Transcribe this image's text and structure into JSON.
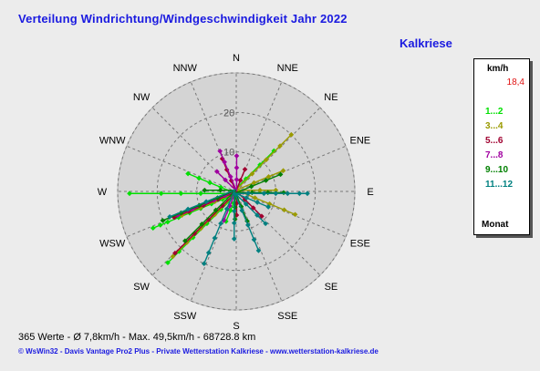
{
  "title": "Verteilung Windrichtung/Windgeschwindigkeit  Jahr 2022",
  "station": "Kalkriese",
  "legend": {
    "unit": "km/h",
    "max_value": "18,4",
    "classes": [
      {
        "label": "1...2",
        "color": "#00e000"
      },
      {
        "label": "3...4",
        "color": "#9a9a00"
      },
      {
        "label": "5...6",
        "color": "#a00030"
      },
      {
        "label": "7...8",
        "color": "#a000a0"
      },
      {
        "label": "9...10",
        "color": "#008000"
      },
      {
        "label": "11...12",
        "color": "#008080"
      }
    ],
    "footer": "Monat"
  },
  "stats_line": "365 Werte   -   Ø 7,8km/h  -  Max. 49,5km/h   -   68728.8 km",
  "credit_line": "© WsWin32  -  Davis Vantage Pro2 Plus  -  Private Wetterstation Kalkriese - www.wetterstation-kalkriese.de",
  "chart_data": {
    "type": "scatter",
    "subtype": "wind-rose",
    "directions": [
      "N",
      "NNE",
      "NE",
      "ENE",
      "E",
      "ESE",
      "SE",
      "SSE",
      "S",
      "SSW",
      "SW",
      "WSW",
      "W",
      "WNW",
      "NW",
      "NNW"
    ],
    "radial_ticks": [
      10,
      20
    ],
    "radial_max": 30,
    "grid": true,
    "legend_position": "right",
    "series": [
      {
        "name": "1...2",
        "color": "#00e000",
        "points": [
          {
            "dir": 247.5,
            "r": [
              4,
              7,
              10,
              13,
              16,
              19,
              21,
              23
            ]
          },
          {
            "dir": 292.5,
            "r": [
              4,
              7,
              10,
              13
            ]
          },
          {
            "dir": 270,
            "r": [
              9,
              14,
              19,
              27
            ]
          },
          {
            "dir": 225,
            "r": [
              6,
              11,
              16,
              21,
              25
            ]
          },
          {
            "dir": 202.5,
            "r": [
              3,
              5,
              8
            ]
          },
          {
            "dir": 45,
            "r": [
              4,
              9,
              14
            ]
          }
        ]
      },
      {
        "name": "3...4",
        "color": "#9a9a00",
        "points": [
          {
            "dir": 45,
            "r": [
              6,
              11,
              16,
              20
            ]
          },
          {
            "dir": 67.5,
            "r": [
              5,
              9,
              13
            ]
          },
          {
            "dir": 112.5,
            "r": [
              5,
              9,
              13,
              16
            ]
          },
          {
            "dir": 225,
            "r": [
              8,
              13,
              18,
              23
            ]
          },
          {
            "dir": 247.5,
            "r": [
              6,
              10,
              15
            ]
          },
          {
            "dir": 90,
            "r": [
              6,
              10
            ]
          }
        ]
      },
      {
        "name": "5...6",
        "color": "#a00030",
        "points": [
          {
            "dir": 225,
            "r": [
              5,
              10,
              15,
              22
            ]
          },
          {
            "dir": 247.5,
            "r": [
              5,
              9,
              13,
              17
            ]
          },
          {
            "dir": 180,
            "r": [
              3,
              6
            ]
          },
          {
            "dir": 337.5,
            "r": [
              3,
              6,
              9
            ]
          },
          {
            "dir": 135,
            "r": [
              3,
              6,
              9
            ]
          },
          {
            "dir": 22.5,
            "r": [
              3,
              6
            ]
          }
        ]
      },
      {
        "name": "7...8",
        "color": "#a000a0",
        "points": [
          {
            "dir": 337.5,
            "r": [
              4,
              8,
              11
            ]
          },
          {
            "dir": 0,
            "r": [
              3,
              6,
              9
            ]
          },
          {
            "dir": 247.5,
            "r": [
              3,
              6,
              12,
              16
            ]
          },
          {
            "dir": 315,
            "r": [
              4,
              7
            ]
          },
          {
            "dir": 202.5,
            "r": [
              4,
              8
            ]
          }
        ]
      },
      {
        "name": "9...10",
        "color": "#008000",
        "points": [
          {
            "dir": 67.5,
            "r": [
              4,
              8,
              12
            ]
          },
          {
            "dir": 90,
            "r": [
              4,
              8,
              12
            ]
          },
          {
            "dir": 247.5,
            "r": [
              5,
              10,
              15,
              20
            ]
          },
          {
            "dir": 225,
            "r": [
              7,
              12,
              18
            ]
          },
          {
            "dir": 180,
            "r": [
              4,
              7
            ]
          },
          {
            "dir": 157.5,
            "r": [
              4,
              8
            ]
          },
          {
            "dir": 270,
            "r": [
              4,
              8
            ]
          }
        ]
      },
      {
        "name": "11...12",
        "color": "#008080",
        "points": [
          {
            "dir": 90,
            "r": [
              3,
              7,
              10,
              13,
              16,
              18
            ]
          },
          {
            "dir": 202.5,
            "r": [
              5,
              9,
              13,
              17,
              20
            ]
          },
          {
            "dir": 157.5,
            "r": [
              5,
              9,
              13,
              16
            ]
          },
          {
            "dir": 135,
            "r": [
              4,
              8,
              11
            ]
          },
          {
            "dir": 180,
            "r": [
              5,
              8,
              12
            ]
          },
          {
            "dir": 247.5,
            "r": [
              8,
              13,
              18
            ]
          },
          {
            "dir": 112.5,
            "r": [
              3,
              6,
              9
            ]
          }
        ]
      }
    ]
  }
}
